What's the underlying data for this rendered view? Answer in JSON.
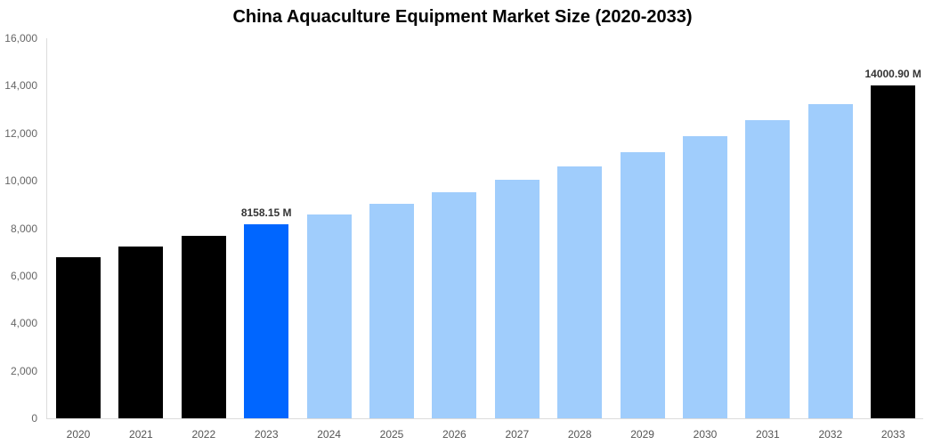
{
  "chart_data": {
    "type": "bar",
    "title": "China Aquaculture Equipment Market Size (2020-2033)",
    "xlabel": "",
    "ylabel": "",
    "ylim": [
      0,
      16000
    ],
    "yticks": [
      "0",
      "2,000",
      "4,000",
      "6,000",
      "8,000",
      "10,000",
      "12,000",
      "14,000",
      "16,000"
    ],
    "grid": false,
    "legend": null,
    "categories": [
      "2020",
      "2021",
      "2022",
      "2023",
      "2024",
      "2025",
      "2026",
      "2027",
      "2028",
      "2029",
      "2030",
      "2031",
      "2032",
      "2033"
    ],
    "values": [
      6780,
      7230,
      7680,
      8158.15,
      8590,
      9030,
      9520,
      10040,
      10600,
      11200,
      11880,
      12560,
      13230,
      14000.9
    ],
    "colors": [
      "#000000",
      "#000000",
      "#000000",
      "#0066ff",
      "#a0cdfc",
      "#a0cdfc",
      "#a0cdfc",
      "#a0cdfc",
      "#a0cdfc",
      "#a0cdfc",
      "#a0cdfc",
      "#a0cdfc",
      "#a0cdfc",
      "#000000"
    ],
    "annotations": [
      {
        "category": "2023",
        "text": "8158.15 M"
      },
      {
        "category": "2033",
        "text": "14000.90 M"
      }
    ]
  }
}
